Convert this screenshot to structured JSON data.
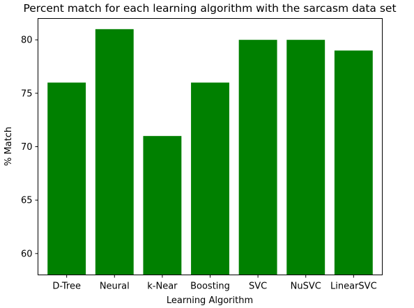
{
  "chart_data": {
    "type": "bar",
    "title": "Percent match for each learning algorithm with the sarcasm data set",
    "xlabel": "Learning Algorithm",
    "ylabel": "% Match",
    "categories": [
      "D-Tree",
      "Neural",
      "k-Near",
      "Boosting",
      "SVC",
      "NuSVC",
      "LinearSVC"
    ],
    "values": [
      76,
      81,
      71,
      76,
      80,
      80,
      79
    ],
    "ylim": [
      58,
      82
    ],
    "yticks": [
      60,
      65,
      70,
      75,
      80
    ],
    "bar_color": "#008000",
    "grid": false,
    "legend": false
  }
}
